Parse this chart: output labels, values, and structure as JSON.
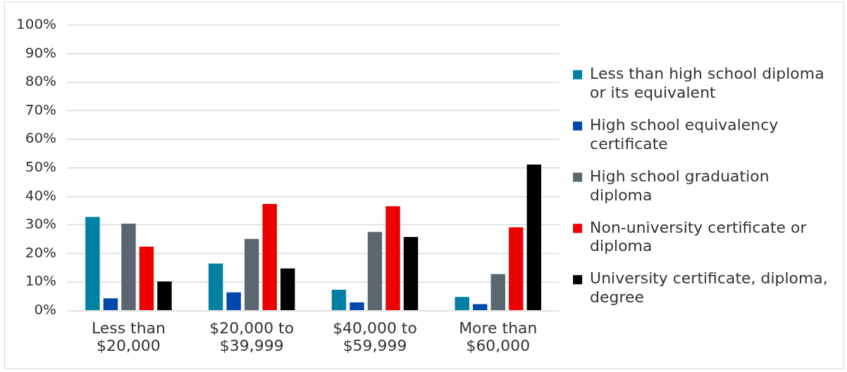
{
  "chart_data": {
    "type": "bar",
    "categories": [
      "Less than $20,000",
      "$20,000 to $39,999",
      "$40,000 to $59,999",
      "More than $60,000"
    ],
    "series": [
      {
        "name": "Less than high school diploma or its equivalent",
        "color": "#0080a3",
        "values": [
          32.8,
          16.5,
          7.3,
          4.8
        ]
      },
      {
        "name": "High school equivalency certificate",
        "color": "#0047ab",
        "values": [
          4.3,
          6.4,
          2.9,
          2.3
        ]
      },
      {
        "name": "High school graduation diploma",
        "color": "#5b6770",
        "values": [
          30.5,
          25.1,
          27.6,
          12.8
        ]
      },
      {
        "name": "Non-university certificate or diploma",
        "color": "#ee0000",
        "values": [
          22.4,
          37.4,
          36.6,
          29.2
        ]
      },
      {
        "name": "University certificate, diploma, degree",
        "color": "#000000",
        "values": [
          10.2,
          14.8,
          25.8,
          51.2
        ]
      }
    ],
    "ylim": [
      0,
      100
    ],
    "yticks": [
      {
        "value": 0,
        "label": "0%"
      },
      {
        "value": 10,
        "label": "10%"
      },
      {
        "value": 20,
        "label": "20%"
      },
      {
        "value": 30,
        "label": "30%"
      },
      {
        "value": 40,
        "label": "40%"
      },
      {
        "value": 50,
        "label": "50%"
      },
      {
        "value": 60,
        "label": "60%"
      },
      {
        "value": 70,
        "label": "70%"
      },
      {
        "value": 80,
        "label": "80%"
      },
      {
        "value": 90,
        "label": "90%"
      },
      {
        "value": 100,
        "label": "100%"
      }
    ],
    "grid": "y",
    "legend": "right"
  }
}
